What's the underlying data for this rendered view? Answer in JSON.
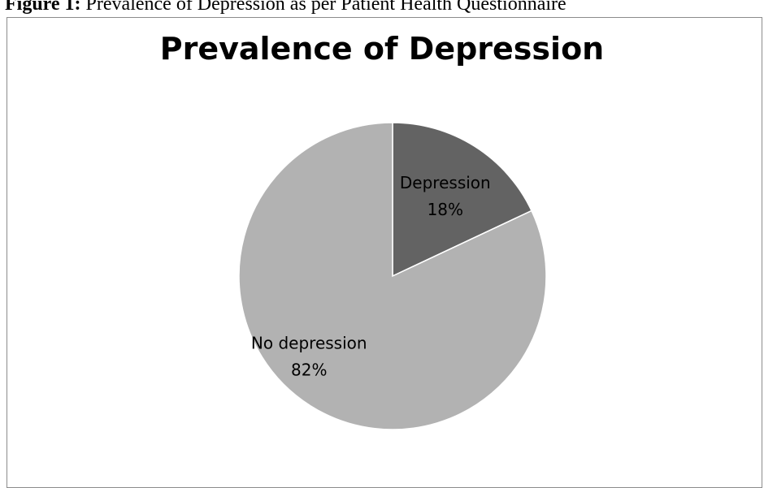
{
  "caption": {
    "label": "Figure 1:",
    "text": "Prevalence of Depression as per Patient Health Questionnaire"
  },
  "chart_data": {
    "type": "pie",
    "title": "Prevalence of Depression",
    "slices": [
      {
        "label": "Depression",
        "value": 18,
        "value_label": "18%",
        "color": "#636363"
      },
      {
        "label": "No depression",
        "value": 82,
        "value_label": "82%",
        "color": "#b2b2b2"
      }
    ],
    "start_angle_deg": 0,
    "direction": "clockwise",
    "legend": "none",
    "slice_border_color": "#ffffff"
  }
}
